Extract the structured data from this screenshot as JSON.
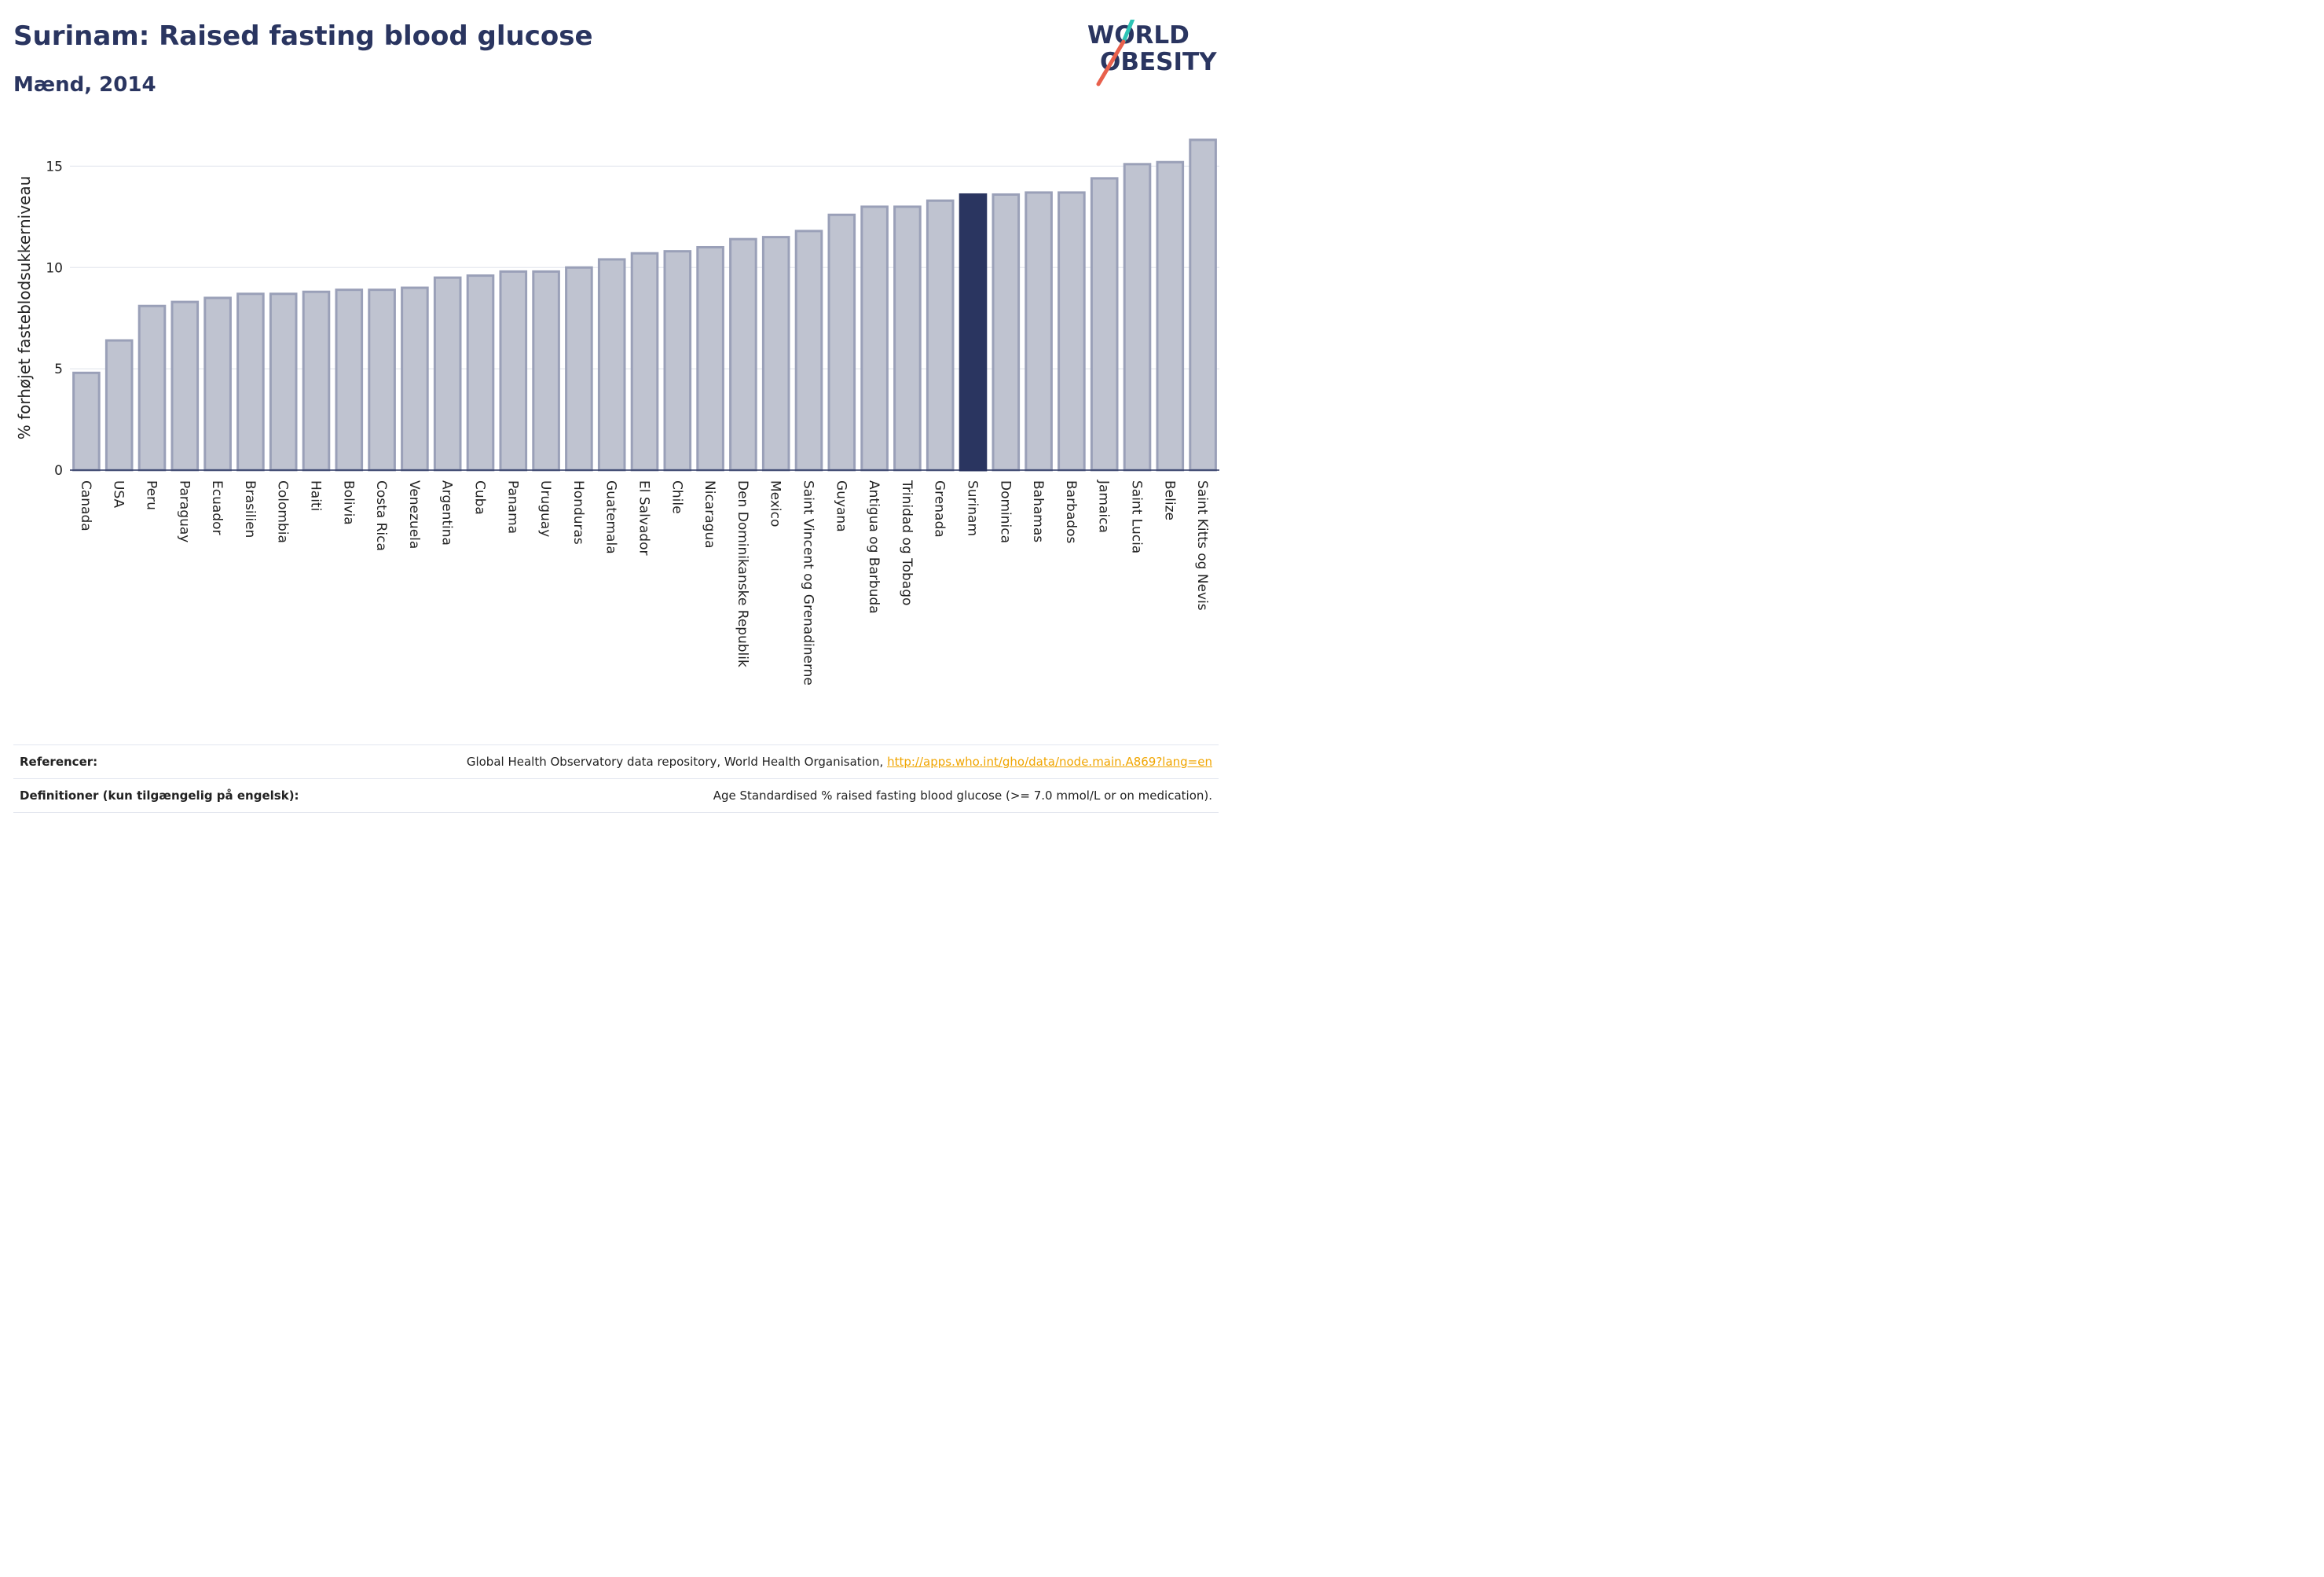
{
  "header": {
    "title": "Surinam: Raised fasting blood glucose",
    "subtitle": "Mænd, 2014"
  },
  "logo": {
    "line1": "WORLD",
    "line2": "OBESITY",
    "slash_colors": [
      "#2ec4b6",
      "#e8604c"
    ]
  },
  "colors": {
    "bar_fill": "#bfc3d0",
    "bar_stroke": "#9aa0b8",
    "highlight": "#2a3560",
    "grid": "#e6e8ef",
    "link": "#f0a500"
  },
  "chart_data": {
    "type": "bar",
    "ylabel": "% forhøjet fasteblodsukkerniveau",
    "ylim": [
      0,
      16.8
    ],
    "yticks": [
      0,
      5,
      10,
      15
    ],
    "grid": true,
    "highlight": "Surinam",
    "categories": [
      "Canada",
      "USA",
      "Peru",
      "Paraguay",
      "Ecuador",
      "Brasilien",
      "Colombia",
      "Haiti",
      "Bolivia",
      "Costa Rica",
      "Venezuela",
      "Argentina",
      "Cuba",
      "Panama",
      "Uruguay",
      "Honduras",
      "Guatemala",
      "El Salvador",
      "Chile",
      "Nicaragua",
      "Den Dominikanske Republik",
      "Mexico",
      "Saint Vincent og Grenadinerne",
      "Guyana",
      "Antigua og Barbuda",
      "Trinidad og Tobago",
      "Grenada",
      "Surinam",
      "Dominica",
      "Bahamas",
      "Barbados",
      "Jamaica",
      "Saint Lucia",
      "Belize",
      "Saint Kitts og Nevis"
    ],
    "values": [
      4.8,
      6.4,
      8.1,
      8.3,
      8.5,
      8.7,
      8.7,
      8.8,
      8.9,
      8.9,
      9.0,
      9.5,
      9.6,
      9.8,
      9.8,
      10.0,
      10.4,
      10.7,
      10.8,
      11.0,
      11.4,
      11.5,
      11.8,
      12.6,
      13.0,
      13.0,
      13.3,
      13.6,
      13.6,
      13.7,
      13.7,
      14.4,
      15.1,
      15.2,
      16.3
    ]
  },
  "references": {
    "ref_label": "Referencer:",
    "ref_text": "Global Health Observatory data repository, World Health Organisation, ",
    "ref_link": "http://apps.who.int/gho/data/node.main.A869?lang=en",
    "def_label": "Definitioner (kun tilgængelig på engelsk):",
    "def_text": "Age Standardised % raised fasting blood glucose (>= 7.0 mmol/L or on medication)."
  }
}
